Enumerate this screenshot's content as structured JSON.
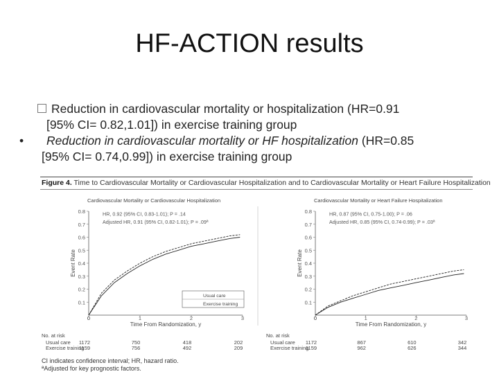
{
  "slide": {
    "title": "HF-ACTION results",
    "bullet1": {
      "line1": "Reduction in cardiovascular mortality or hospitalization  (HR=0.91",
      "line2": "[95% CI= 0.82,1.01]) in exercise training group"
    },
    "bullet2": {
      "marker": "•",
      "italic": "Reduction in cardiovascular mortality  or HF hospitalization",
      "tail": " (HR=0.85",
      "line2": "[95% CI= 0.74,0.99]) in exercise training group"
    }
  },
  "figure": {
    "number": "Figure 4.",
    "caption": " Time to Cardiovascular Mortality or Cardiovascular Hospitalization and to Cardiovascular Mortality or Heart Failure Hospitalization",
    "footnote1": "CI indicates confidence interval; HR, hazard ratio.",
    "footnote2": "ªAdjusted for key prognostic factors."
  },
  "chart_data": [
    {
      "type": "line",
      "title": "Cardiovascular Mortality or Cardiovascular Hospitalization",
      "xlabel": "Time From Randomization, y",
      "ylabel": "Event Rate",
      "xlim": [
        0,
        3
      ],
      "ylim": [
        0,
        0.8
      ],
      "xticks": [
        "0",
        "1",
        "2",
        "3"
      ],
      "yticks": [
        "0.1",
        "0.2",
        "0.3",
        "0.4",
        "0.5",
        "0.6",
        "0.7",
        "0.8"
      ],
      "zero_label": "0",
      "annotation1": "HR, 0.92 (95% CI, 0.83-1.01); P = .14",
      "annotation2": "Adjusted HR, 0.91 (95% CI, 0.82-1.01); P = .09ª",
      "legend": [
        "Usual care",
        "Exercise training"
      ],
      "series": [
        {
          "name": "Usual care",
          "x": [
            0,
            0.25,
            0.5,
            0.75,
            1.0,
            1.25,
            1.5,
            1.75,
            2.0,
            2.25,
            2.5,
            2.75,
            2.95
          ],
          "y": [
            0,
            0.17,
            0.27,
            0.34,
            0.4,
            0.45,
            0.49,
            0.52,
            0.55,
            0.57,
            0.59,
            0.61,
            0.62
          ]
        },
        {
          "name": "Exercise training",
          "x": [
            0,
            0.25,
            0.5,
            0.75,
            1.0,
            1.25,
            1.5,
            1.75,
            2.0,
            2.25,
            2.5,
            2.75,
            2.95
          ],
          "y": [
            0,
            0.15,
            0.25,
            0.32,
            0.38,
            0.43,
            0.47,
            0.5,
            0.53,
            0.55,
            0.57,
            0.59,
            0.6
          ]
        }
      ],
      "at_risk": {
        "header": "No. at risk",
        "rows": [
          {
            "label": "Usual care",
            "values": [
              "1172",
              "750",
              "418",
              "202"
            ]
          },
          {
            "label": "Exercise training",
            "values": [
              "1159",
              "756",
              "492",
              "209"
            ]
          }
        ]
      }
    },
    {
      "type": "line",
      "title": "Cardiovascular Mortality or Heart Failure Hospitalization",
      "xlabel": "Time From Randomization, y",
      "ylabel": "Event Rate",
      "xlim": [
        0,
        3
      ],
      "ylim": [
        0,
        0.8
      ],
      "xticks": [
        "0",
        "1",
        "2",
        "3"
      ],
      "yticks": [
        "0.1",
        "0.2",
        "0.3",
        "0.4",
        "0.5",
        "0.6",
        "0.7",
        "0.8"
      ],
      "zero_label": "0",
      "annotation1": "HR, 0.87 (95% CI, 0.75-1.00); P = .06",
      "annotation2": "Adjusted HR, 0.85 (95% CI, 0.74-0.99); P = .03ª",
      "series": [
        {
          "name": "Usual care",
          "x": [
            0,
            0.25,
            0.5,
            0.75,
            1.0,
            1.25,
            1.5,
            1.75,
            2.0,
            2.25,
            2.5,
            2.75,
            2.95
          ],
          "y": [
            0,
            0.07,
            0.11,
            0.15,
            0.18,
            0.21,
            0.24,
            0.26,
            0.28,
            0.3,
            0.32,
            0.34,
            0.35
          ]
        },
        {
          "name": "Exercise training",
          "x": [
            0,
            0.25,
            0.5,
            0.75,
            1.0,
            1.25,
            1.5,
            1.75,
            2.0,
            2.25,
            2.5,
            2.75,
            2.95
          ],
          "y": [
            0,
            0.06,
            0.1,
            0.13,
            0.16,
            0.19,
            0.21,
            0.23,
            0.25,
            0.27,
            0.29,
            0.31,
            0.32
          ]
        }
      ],
      "at_risk": {
        "header": "No. at risk",
        "rows": [
          {
            "label": "Usual care",
            "values": [
              "1172",
              "867",
              "610",
              "342"
            ]
          },
          {
            "label": "Exercise training",
            "values": [
              "1159",
              "962",
              "626",
              "344"
            ]
          }
        ]
      }
    }
  ]
}
